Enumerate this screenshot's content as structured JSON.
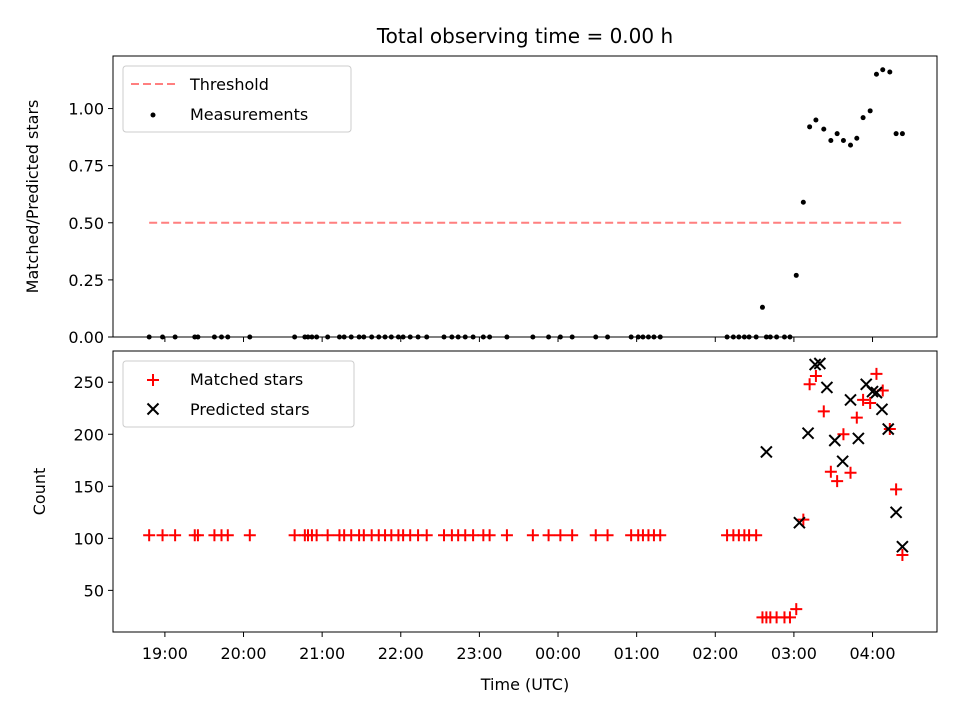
{
  "title": "Total observing time = 0.00 h",
  "chart_data": [
    {
      "type": "scatter",
      "ylabel": "Matched/Predicted stars",
      "ylim": [
        0,
        1.23
      ],
      "y_ticks": [
        "0.00",
        "0.25",
        "0.50",
        "0.75",
        "1.00"
      ],
      "xlim": [
        -0.66,
        9.82
      ],
      "x_unit": "hours after 19:00 UTC",
      "legend": {
        "placement": "top-left",
        "entries": [
          "Threshold",
          "Measurements"
        ]
      },
      "threshold": {
        "name": "Threshold",
        "value": 0.5,
        "x_range": [
          -0.2,
          9.4
        ],
        "color": "#ff7f7f",
        "style": "dashed"
      },
      "series": [
        {
          "name": "Measurements",
          "color": "#000000",
          "marker": "dot",
          "x": [
            -0.2,
            -0.03,
            0.13,
            0.38,
            0.42,
            0.63,
            0.72,
            0.8,
            1.08,
            1.65,
            1.78,
            1.82,
            1.87,
            1.93,
            2.07,
            2.22,
            2.28,
            2.37,
            2.47,
            2.53,
            2.63,
            2.72,
            2.8,
            2.88,
            2.97,
            3.03,
            3.12,
            3.22,
            3.33,
            3.55,
            3.65,
            3.73,
            3.82,
            3.92,
            4.05,
            4.13,
            4.35,
            4.68,
            4.88,
            5.03,
            5.18,
            5.48,
            5.63,
            5.93,
            6.02,
            6.08,
            6.15,
            6.22,
            6.3,
            7.15,
            7.23,
            7.3,
            7.37,
            7.43,
            7.52,
            7.6,
            7.65,
            7.7,
            7.78,
            7.88,
            7.95,
            8.03,
            8.12,
            8.2,
            8.28,
            8.38,
            8.47,
            8.55,
            8.63,
            8.72,
            8.8,
            8.88,
            8.97,
            9.05,
            9.13,
            9.22,
            9.3,
            9.38
          ],
          "y": [
            0,
            0,
            0,
            0,
            0,
            0,
            0,
            0,
            0,
            0,
            0,
            0,
            0,
            0,
            0,
            0,
            0,
            0,
            0,
            0,
            0,
            0,
            0,
            0,
            0,
            0,
            0,
            0,
            0,
            0,
            0,
            0,
            0,
            0,
            0,
            0,
            0,
            0,
            0,
            0,
            0,
            0,
            0,
            0,
            0,
            0,
            0,
            0,
            0,
            0,
            0,
            0,
            0,
            0,
            0,
            0.13,
            0,
            0,
            0,
            0,
            0,
            0.27,
            0.59,
            0.92,
            0.95,
            0.91,
            0.86,
            0.89,
            0.86,
            0.84,
            0.87,
            0.96,
            0.99,
            1.15,
            1.17,
            1.16,
            0.89,
            0.89
          ]
        }
      ]
    },
    {
      "type": "scatter",
      "xlabel": "Time (UTC)",
      "ylabel": "Count",
      "ylim": [
        10,
        280
      ],
      "y_ticks": [
        "50",
        "100",
        "150",
        "200",
        "250"
      ],
      "xlim": [
        -0.66,
        9.82
      ],
      "x_unit": "hours after 19:00 UTC",
      "x_ticks": [
        "19:00",
        "20:00",
        "21:00",
        "22:00",
        "23:00",
        "00:00",
        "01:00",
        "02:00",
        "03:00",
        "04:00"
      ],
      "legend": {
        "placement": "top-left",
        "entries": [
          "Matched stars",
          "Predicted stars"
        ]
      },
      "series": [
        {
          "name": "Matched stars",
          "color": "#ff0000",
          "marker": "plus",
          "x": [
            -0.2,
            -0.03,
            0.13,
            0.38,
            0.42,
            0.63,
            0.72,
            0.8,
            1.08,
            1.65,
            1.78,
            1.82,
            1.87,
            1.93,
            2.07,
            2.22,
            2.28,
            2.37,
            2.47,
            2.53,
            2.63,
            2.72,
            2.8,
            2.88,
            2.97,
            3.03,
            3.12,
            3.22,
            3.33,
            3.55,
            3.65,
            3.73,
            3.82,
            3.92,
            4.05,
            4.13,
            4.35,
            4.68,
            4.88,
            5.03,
            5.18,
            5.48,
            5.63,
            5.93,
            6.02,
            6.08,
            6.15,
            6.22,
            6.3,
            7.15,
            7.23,
            7.3,
            7.37,
            7.43,
            7.52,
            7.6,
            7.65,
            7.7,
            7.78,
            7.88,
            7.95,
            8.03,
            8.12,
            8.2,
            8.28,
            8.38,
            8.47,
            8.55,
            8.63,
            8.72,
            8.8,
            8.88,
            8.97,
            9.05,
            9.13,
            9.22,
            9.3,
            9.38
          ],
          "y": [
            103,
            103,
            103,
            103,
            103,
            103,
            103,
            103,
            103,
            103,
            103,
            103,
            103,
            103,
            103,
            103,
            103,
            103,
            103,
            103,
            103,
            103,
            103,
            103,
            103,
            103,
            103,
            103,
            103,
            103,
            103,
            103,
            103,
            103,
            103,
            103,
            103,
            103,
            103,
            103,
            103,
            103,
            103,
            103,
            103,
            103,
            103,
            103,
            103,
            103,
            103,
            103,
            103,
            103,
            103,
            24,
            24,
            24,
            24,
            24,
            24,
            32,
            118,
            248,
            256,
            222,
            164,
            155,
            200,
            163,
            216,
            233,
            230,
            258,
            242,
            205,
            147,
            84
          ]
        },
        {
          "name": "Predicted stars",
          "color": "#000000",
          "marker": "x",
          "x": [
            7.65,
            8.07,
            8.18,
            8.27,
            8.33,
            8.42,
            8.52,
            8.62,
            8.72,
            8.82,
            8.92,
            9.0,
            9.05,
            9.12,
            9.2,
            9.3,
            9.38
          ],
          "y": [
            183,
            115,
            201,
            267,
            268,
            245,
            194,
            174,
            233,
            196,
            248,
            241,
            240,
            224,
            205,
            125,
            92
          ]
        }
      ]
    }
  ]
}
